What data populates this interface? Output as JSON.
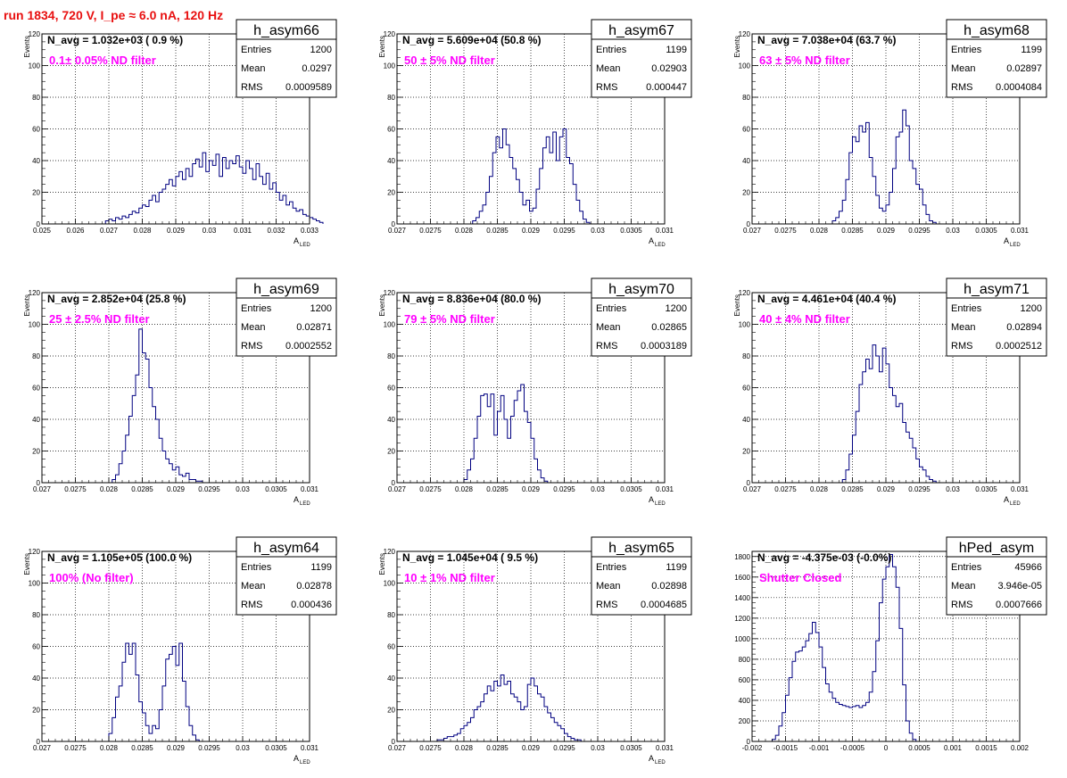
{
  "page_title": "run 1834,   720 V, I_pe ≈ 6.0 nA, 120 Hz",
  "stats_labels": {
    "entries": "Entries",
    "mean": "Mean",
    "rms": "RMS"
  },
  "colors": {
    "title": "#e81010",
    "annotation": "#ff00ff",
    "histogram": "#000080",
    "grid": "#000000"
  },
  "chart_data": [
    {
      "type": "histogram",
      "name": "h_asym66",
      "navg": "N_avg = 1.032e+03 ( 0.9 %)",
      "annotation": "0.1± 0.05% ND filter",
      "entries": "1200",
      "mean": "0.0297",
      "rms": "0.0009589",
      "xlabel": "A",
      "xlabel_sub": "LED",
      "ylabel": "Events",
      "xlim": [
        0.025,
        0.033
      ],
      "ylim": [
        0,
        120
      ],
      "xticks": [
        0.025,
        0.026,
        0.027,
        0.028,
        0.029,
        0.03,
        0.031,
        0.032,
        0.033
      ],
      "xtick_labels": [
        "0.025",
        "0.026",
        "0.027",
        "0.028",
        "0.029",
        "0.03",
        "0.031",
        "0.032",
        "0.033"
      ],
      "yticks": [
        0,
        20,
        40,
        60,
        80,
        100,
        120
      ],
      "ytick_labels": [
        "0",
        "20",
        "40",
        "60",
        "80",
        "100",
        "120"
      ],
      "bin_start": 0.0269,
      "bin_width": 0.0001,
      "values": [
        2,
        3,
        2,
        4,
        3,
        5,
        4,
        6,
        8,
        7,
        10,
        12,
        11,
        15,
        18,
        14,
        20,
        22,
        25,
        28,
        24,
        30,
        33,
        28,
        35,
        30,
        38,
        41,
        36,
        45,
        33,
        40,
        37,
        44,
        30,
        42,
        35,
        40,
        38,
        43,
        36,
        32,
        40,
        35,
        28,
        38,
        30,
        25,
        32,
        22,
        26,
        20,
        15,
        18,
        12,
        14,
        10,
        8,
        9,
        6,
        5,
        4,
        3,
        2,
        1
      ]
    },
    {
      "type": "histogram",
      "name": "h_asym67",
      "navg": "N_avg = 5.609e+04 (50.8 %)",
      "annotation": "50 ± 5% ND filter",
      "entries": "1199",
      "mean": "0.02903",
      "rms": "0.000447",
      "xlabel": "A",
      "xlabel_sub": "LED",
      "ylabel": "Events",
      "xlim": [
        0.027,
        0.031
      ],
      "ylim": [
        0,
        120
      ],
      "xticks": [
        0.027,
        0.0275,
        0.028,
        0.0285,
        0.029,
        0.0295,
        0.03,
        0.0305,
        0.031
      ],
      "xtick_labels": [
        "0.027",
        "0.0275",
        "0.028",
        "0.0285",
        "0.029",
        "0.0295",
        "0.03",
        "0.0305",
        "0.031"
      ],
      "yticks": [
        0,
        20,
        40,
        60,
        80,
        100,
        120
      ],
      "ytick_labels": [
        "0",
        "20",
        "40",
        "60",
        "80",
        "100",
        "120"
      ],
      "bin_start": 0.02813,
      "bin_width": 5e-05,
      "values": [
        2,
        4,
        8,
        12,
        20,
        30,
        45,
        55,
        48,
        60,
        50,
        42,
        35,
        28,
        20,
        12,
        15,
        8,
        10,
        22,
        35,
        48,
        55,
        45,
        58,
        40,
        55,
        60,
        42,
        38,
        25,
        15,
        8,
        3,
        1
      ]
    },
    {
      "type": "histogram",
      "name": "h_asym68",
      "navg": "N_avg = 7.038e+04 (63.7 %)",
      "annotation": "63 ± 5% ND filter",
      "entries": "1199",
      "mean": "0.02897",
      "rms": "0.0004084",
      "xlabel": "A",
      "xlabel_sub": "LED",
      "ylabel": "Events",
      "xlim": [
        0.027,
        0.031
      ],
      "ylim": [
        0,
        120
      ],
      "xticks": [
        0.027,
        0.0275,
        0.028,
        0.0285,
        0.029,
        0.0295,
        0.03,
        0.0305,
        0.031
      ],
      "xtick_labels": [
        "0.027",
        "0.0275",
        "0.028",
        "0.0285",
        "0.029",
        "0.0295",
        "0.03",
        "0.0305",
        "0.031"
      ],
      "yticks": [
        0,
        20,
        40,
        60,
        80,
        100,
        120
      ],
      "ytick_labels": [
        "0",
        "20",
        "40",
        "60",
        "80",
        "100",
        "120"
      ],
      "bin_start": 0.0282,
      "bin_width": 5e-05,
      "values": [
        2,
        4,
        8,
        15,
        28,
        45,
        55,
        52,
        62,
        58,
        64,
        42,
        30,
        18,
        10,
        8,
        12,
        20,
        35,
        55,
        58,
        72,
        62,
        40,
        35,
        25,
        22,
        12,
        6,
        2,
        1
      ]
    },
    {
      "type": "histogram",
      "name": "h_asym69",
      "navg": "N_avg = 2.852e+04 (25.8 %)",
      "annotation": "25 ± 2.5% ND filter",
      "entries": "1200",
      "mean": "0.02871",
      "rms": "0.0002552",
      "xlabel": "A",
      "xlabel_sub": "LED",
      "ylabel": "Events",
      "xlim": [
        0.027,
        0.031
      ],
      "ylim": [
        0,
        120
      ],
      "xticks": [
        0.027,
        0.0275,
        0.028,
        0.0285,
        0.029,
        0.0295,
        0.03,
        0.0305,
        0.031
      ],
      "xtick_labels": [
        "0.027",
        "0.0275",
        "0.028",
        "0.0285",
        "0.029",
        "0.0295",
        "0.03",
        "0.0305",
        "0.031"
      ],
      "yticks": [
        0,
        20,
        40,
        60,
        80,
        100,
        120
      ],
      "ytick_labels": [
        "0",
        "20",
        "40",
        "60",
        "80",
        "100",
        "120"
      ],
      "bin_start": 0.02805,
      "bin_width": 5e-05,
      "values": [
        2,
        5,
        12,
        20,
        30,
        42,
        55,
        68,
        97,
        82,
        78,
        60,
        48,
        40,
        28,
        20,
        15,
        12,
        8,
        10,
        5,
        4,
        6,
        2,
        2,
        1,
        1
      ]
    },
    {
      "type": "histogram",
      "name": "h_asym70",
      "navg": "N_avg = 8.836e+04 (80.0 %)",
      "annotation": "79 ± 5% ND filter",
      "entries": "1200",
      "mean": "0.02865",
      "rms": "0.0003189",
      "xlabel": "A",
      "xlabel_sub": "LED",
      "ylabel": "Events",
      "xlim": [
        0.027,
        0.031
      ],
      "ylim": [
        0,
        120
      ],
      "xticks": [
        0.027,
        0.0275,
        0.028,
        0.0285,
        0.029,
        0.0295,
        0.03,
        0.0305,
        0.031
      ],
      "xtick_labels": [
        "0.027",
        "0.0275",
        "0.028",
        "0.0285",
        "0.029",
        "0.0295",
        "0.03",
        "0.0305",
        "0.031"
      ],
      "yticks": [
        0,
        20,
        40,
        60,
        80,
        100,
        120
      ],
      "ytick_labels": [
        "0",
        "20",
        "40",
        "60",
        "80",
        "100",
        "120"
      ],
      "bin_start": 0.028,
      "bin_width": 5e-05,
      "values": [
        2,
        8,
        15,
        28,
        42,
        55,
        56,
        48,
        56,
        30,
        45,
        55,
        40,
        28,
        42,
        52,
        58,
        62,
        45,
        38,
        28,
        15,
        8,
        3,
        1
      ]
    },
    {
      "type": "histogram",
      "name": "h_asym71",
      "navg": "N_avg = 4.461e+04 (40.4 %)",
      "annotation": "40 ± 4% ND filter",
      "entries": "1200",
      "mean": "0.02894",
      "rms": "0.0002512",
      "xlabel": "A",
      "xlabel_sub": "LED",
      "ylabel": "Events",
      "xlim": [
        0.027,
        0.031
      ],
      "ylim": [
        0,
        120
      ],
      "xticks": [
        0.027,
        0.0275,
        0.028,
        0.0285,
        0.029,
        0.0295,
        0.03,
        0.0305,
        0.031
      ],
      "xtick_labels": [
        "0.027",
        "0.0275",
        "0.028",
        "0.0285",
        "0.029",
        "0.0295",
        "0.03",
        "0.0305",
        "0.031"
      ],
      "yticks": [
        0,
        20,
        40,
        60,
        80,
        100,
        120
      ],
      "ytick_labels": [
        "0",
        "20",
        "40",
        "60",
        "80",
        "100",
        "120"
      ],
      "bin_start": 0.02835,
      "bin_width": 5e-05,
      "values": [
        2,
        8,
        18,
        30,
        45,
        62,
        70,
        78,
        72,
        87,
        80,
        70,
        85,
        75,
        60,
        55,
        48,
        50,
        38,
        32,
        28,
        22,
        15,
        10,
        8,
        4,
        2,
        1
      ]
    },
    {
      "type": "histogram",
      "name": "h_asym64",
      "navg": "N_avg = 1.105e+05 (100.0 %)",
      "annotation": "100% (No filter)",
      "entries": "1199",
      "mean": "0.02878",
      "rms": "0.000436",
      "xlabel": "A",
      "xlabel_sub": "LED",
      "ylabel": "Events",
      "xlim": [
        0.027,
        0.031
      ],
      "ylim": [
        0,
        120
      ],
      "xticks": [
        0.027,
        0.0275,
        0.028,
        0.0285,
        0.029,
        0.0295,
        0.03,
        0.0305,
        0.031
      ],
      "xtick_labels": [
        "0.027",
        "0.0275",
        "0.028",
        "0.0285",
        "0.029",
        "0.0295",
        "0.03",
        "0.0305",
        "0.031"
      ],
      "yticks": [
        0,
        20,
        40,
        60,
        80,
        100,
        120
      ],
      "ytick_labels": [
        "0",
        "20",
        "40",
        "60",
        "80",
        "100",
        "120"
      ],
      "bin_start": 0.028,
      "bin_width": 5e-05,
      "values": [
        5,
        15,
        28,
        35,
        50,
        62,
        55,
        62,
        42,
        25,
        18,
        10,
        5,
        10,
        8,
        20,
        35,
        52,
        55,
        60,
        48,
        62,
        38,
        22,
        10,
        4,
        1
      ]
    },
    {
      "type": "histogram",
      "name": "h_asym65",
      "navg": "N_avg = 1.045e+04 ( 9.5 %)",
      "annotation": "10 ± 1% ND filter",
      "entries": "1199",
      "mean": "0.02898",
      "rms": "0.0004685",
      "xlabel": "A",
      "xlabel_sub": "LED",
      "ylabel": "Events",
      "xlim": [
        0.027,
        0.031
      ],
      "ylim": [
        0,
        120
      ],
      "xticks": [
        0.027,
        0.0275,
        0.028,
        0.0285,
        0.029,
        0.0295,
        0.03,
        0.0305,
        0.031
      ],
      "xtick_labels": [
        "0.027",
        "0.0275",
        "0.028",
        "0.0285",
        "0.029",
        "0.0295",
        "0.03",
        "0.0305",
        "0.031"
      ],
      "yticks": [
        0,
        20,
        40,
        60,
        80,
        100,
        120
      ],
      "ytick_labels": [
        "0",
        "20",
        "40",
        "60",
        "80",
        "100",
        "120"
      ],
      "bin_start": 0.0276,
      "bin_width": 5e-05,
      "values": [
        1,
        1,
        2,
        3,
        3,
        4,
        5,
        8,
        10,
        12,
        15,
        20,
        22,
        25,
        30,
        35,
        32,
        38,
        35,
        42,
        36,
        38,
        30,
        28,
        25,
        20,
        22,
        36,
        40,
        35,
        30,
        28,
        22,
        18,
        15,
        12,
        10,
        8,
        5,
        3,
        2,
        1,
        1
      ]
    },
    {
      "type": "histogram",
      "name": "hPed_asym",
      "navg": "N_avg = -4.375e-03 (-0.0%)",
      "annotation": "Shutter Closed",
      "entries": "45966",
      "mean": "3.946e-05",
      "rms": "0.0007666",
      "xlabel": "",
      "xlabel_sub": "",
      "ylabel": "",
      "xlim": [
        -0.002,
        0.002
      ],
      "ylim": [
        0,
        1850
      ],
      "xticks": [
        -0.002,
        -0.0015,
        -0.001,
        -0.0005,
        0,
        0.0005,
        0.001,
        0.0015,
        0.002
      ],
      "xtick_labels": [
        "-0.002",
        "-0.0015",
        "-0.001",
        "-0.0005",
        "0",
        "0.0005",
        "0.001",
        "0.0015",
        "0.002"
      ],
      "yticks": [
        0,
        200,
        400,
        600,
        800,
        1000,
        1200,
        1400,
        1600,
        1800
      ],
      "ytick_labels": [
        "0",
        "200",
        "400",
        "600",
        "800",
        "1000",
        "1200",
        "1400",
        "1600",
        "1800"
      ],
      "bin_start": -0.0017,
      "bin_width": 5e-05,
      "values": [
        20,
        60,
        150,
        280,
        450,
        620,
        780,
        870,
        880,
        920,
        980,
        1050,
        1160,
        1060,
        920,
        720,
        560,
        480,
        420,
        380,
        360,
        350,
        340,
        330,
        340,
        350,
        330,
        350,
        380,
        480,
        680,
        980,
        1350,
        1580,
        1700,
        1820,
        1700,
        1500,
        1100,
        550,
        200,
        80,
        20
      ]
    }
  ]
}
